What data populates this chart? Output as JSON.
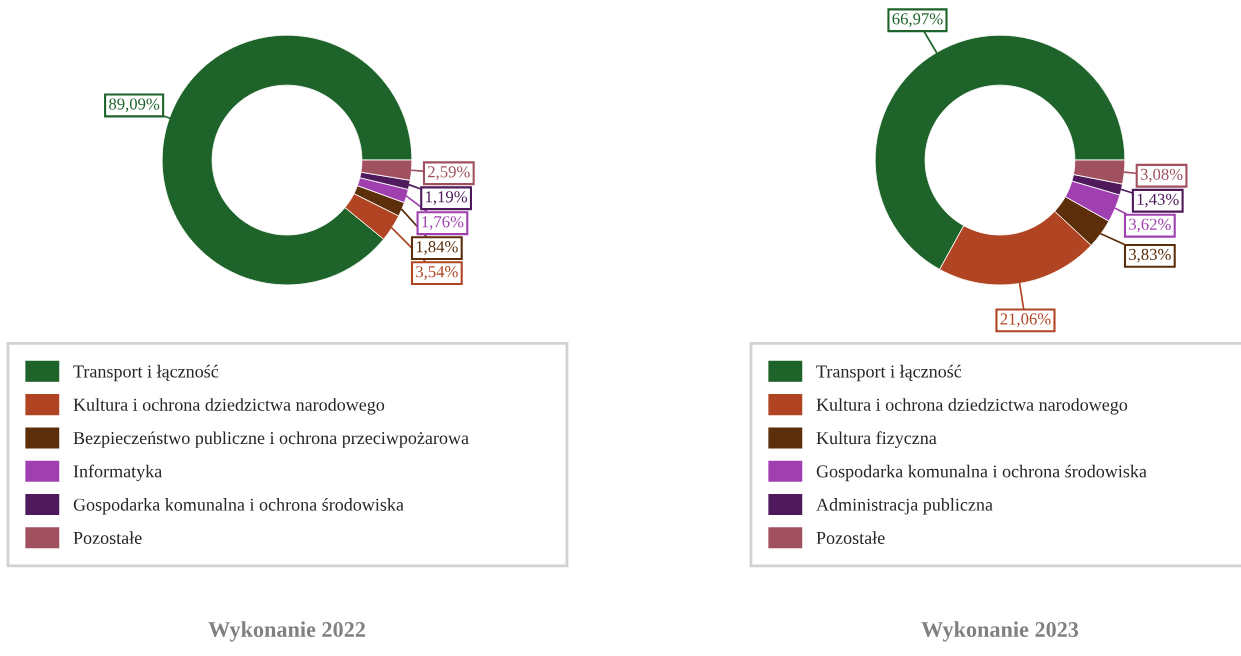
{
  "chart_data": [
    {
      "type": "donut",
      "title": "Wykonanie 2022",
      "legend": "bottom",
      "categories": [
        "Transport i łączność",
        "Kultura i ochrona dziedzictwa narodowego",
        "Bezpieczeństwo publiczne i ochrona przeciwpożarowa",
        "Informatyka",
        "Gospodarka komunalna i ochrona środowiska",
        "Pozostałe"
      ],
      "values": [
        89.09,
        3.54,
        1.84,
        1.76,
        1.19,
        2.59
      ],
      "value_labels": [
        "89,09%",
        "3,54%",
        "1,84%",
        "1,76%",
        "1,19%",
        "2,59%"
      ],
      "colors": [
        "#1e6329",
        "#b04423",
        "#5c2e0a",
        "#a040b0",
        "#4e1a5c",
        "#a0505f"
      ]
    },
    {
      "type": "donut",
      "title": "Wykonanie 2023",
      "legend": "bottom",
      "categories": [
        "Transport i łączność",
        "Kultura i ochrona dziedzictwa narodowego",
        "Kultura fizyczna",
        "Gospodarka komunalna i ochrona środowiska",
        "Administracja publiczna",
        "Pozostałe"
      ],
      "values": [
        66.97,
        21.06,
        3.83,
        3.62,
        1.43,
        3.08
      ],
      "value_labels": [
        "66,97%",
        "21,06%",
        "3,83%",
        "3,62%",
        "1,43%",
        "3,08%"
      ],
      "colors": [
        "#1e6329",
        "#b04423",
        "#5c2e0a",
        "#a040b0",
        "#4e1a5c",
        "#a0505f"
      ]
    }
  ]
}
